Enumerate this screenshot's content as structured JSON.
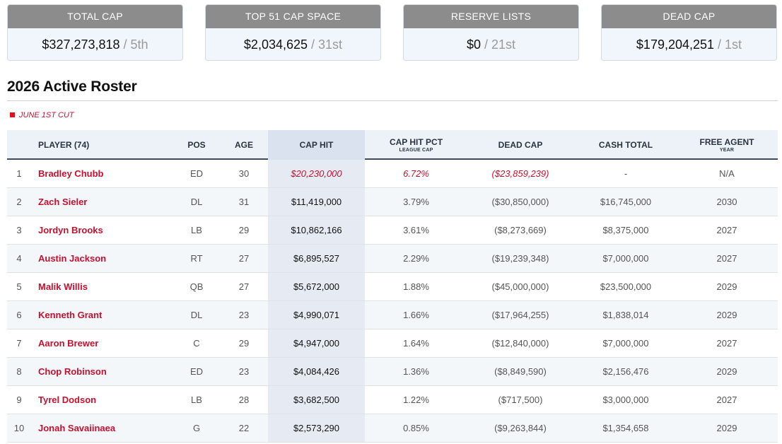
{
  "summary_cards": [
    {
      "label": "TOTAL CAP",
      "value": "$327,273,818",
      "rank": "/ 5th"
    },
    {
      "label": "TOP 51 CAP SPACE",
      "value": "$2,034,625",
      "rank": "/ 31st"
    },
    {
      "label": "RESERVE LISTS",
      "value": "$0",
      "rank": "/ 21st"
    },
    {
      "label": "DEAD CAP",
      "value": "$179,204,251",
      "rank": "/ 1st"
    }
  ],
  "section": {
    "title": "2026 Active Roster",
    "legend": "JUNE 1ST CUT",
    "legend_color": "#e0101f"
  },
  "table": {
    "headers": {
      "player": "PLAYER (74)",
      "pos": "POS",
      "age": "AGE",
      "cap_hit": "CAP HIT",
      "cap_hit_pct": "CAP HIT PCT",
      "cap_hit_pct_sub": "LEAGUE CAP",
      "dead_cap": "DEAD CAP",
      "cash_total": "CASH TOTAL",
      "free_agent": "FREE AGENT",
      "free_agent_sub": "YEAR"
    },
    "rows": [
      {
        "num": "1",
        "player": "Bradley Chubb",
        "pos": "ED",
        "age": "30",
        "cap_hit": "$20,230,000",
        "pct": "6.72%",
        "dead": "($23,859,239)",
        "cash": "-",
        "fa": "N/A",
        "june1": true
      },
      {
        "num": "2",
        "player": "Zach Sieler",
        "pos": "DL",
        "age": "31",
        "cap_hit": "$11,419,000",
        "pct": "3.79%",
        "dead": "($30,850,000)",
        "cash": "$16,745,000",
        "fa": "2030",
        "june1": false
      },
      {
        "num": "3",
        "player": "Jordyn Brooks",
        "pos": "LB",
        "age": "29",
        "cap_hit": "$10,862,166",
        "pct": "3.61%",
        "dead": "($8,273,669)",
        "cash": "$8,375,000",
        "fa": "2027",
        "june1": false
      },
      {
        "num": "4",
        "player": "Austin Jackson",
        "pos": "RT",
        "age": "27",
        "cap_hit": "$6,895,527",
        "pct": "2.29%",
        "dead": "($19,239,348)",
        "cash": "$7,000,000",
        "fa": "2027",
        "june1": false
      },
      {
        "num": "5",
        "player": "Malik Willis",
        "pos": "QB",
        "age": "27",
        "cap_hit": "$5,672,000",
        "pct": "1.88%",
        "dead": "($45,000,000)",
        "cash": "$23,500,000",
        "fa": "2029",
        "june1": false
      },
      {
        "num": "6",
        "player": "Kenneth Grant",
        "pos": "DL",
        "age": "23",
        "cap_hit": "$4,990,071",
        "pct": "1.66%",
        "dead": "($17,964,255)",
        "cash": "$1,838,014",
        "fa": "2029",
        "june1": false
      },
      {
        "num": "7",
        "player": "Aaron Brewer",
        "pos": "C",
        "age": "29",
        "cap_hit": "$4,947,000",
        "pct": "1.64%",
        "dead": "($12,840,000)",
        "cash": "$7,000,000",
        "fa": "2027",
        "june1": false
      },
      {
        "num": "8",
        "player": "Chop Robinson",
        "pos": "ED",
        "age": "23",
        "cap_hit": "$4,084,426",
        "pct": "1.36%",
        "dead": "($8,849,590)",
        "cash": "$2,156,476",
        "fa": "2029",
        "june1": false
      },
      {
        "num": "9",
        "player": "Tyrel Dodson",
        "pos": "LB",
        "age": "28",
        "cap_hit": "$3,682,500",
        "pct": "1.22%",
        "dead": "($717,500)",
        "cash": "$3,000,000",
        "fa": "2027",
        "june1": false
      },
      {
        "num": "10",
        "player": "Jonah Savaiinaea",
        "pos": "G",
        "age": "22",
        "cap_hit": "$2,573,290",
        "pct": "0.85%",
        "dead": "($9,263,844)",
        "cash": "$1,354,658",
        "fa": "2029",
        "june1": false
      }
    ]
  }
}
